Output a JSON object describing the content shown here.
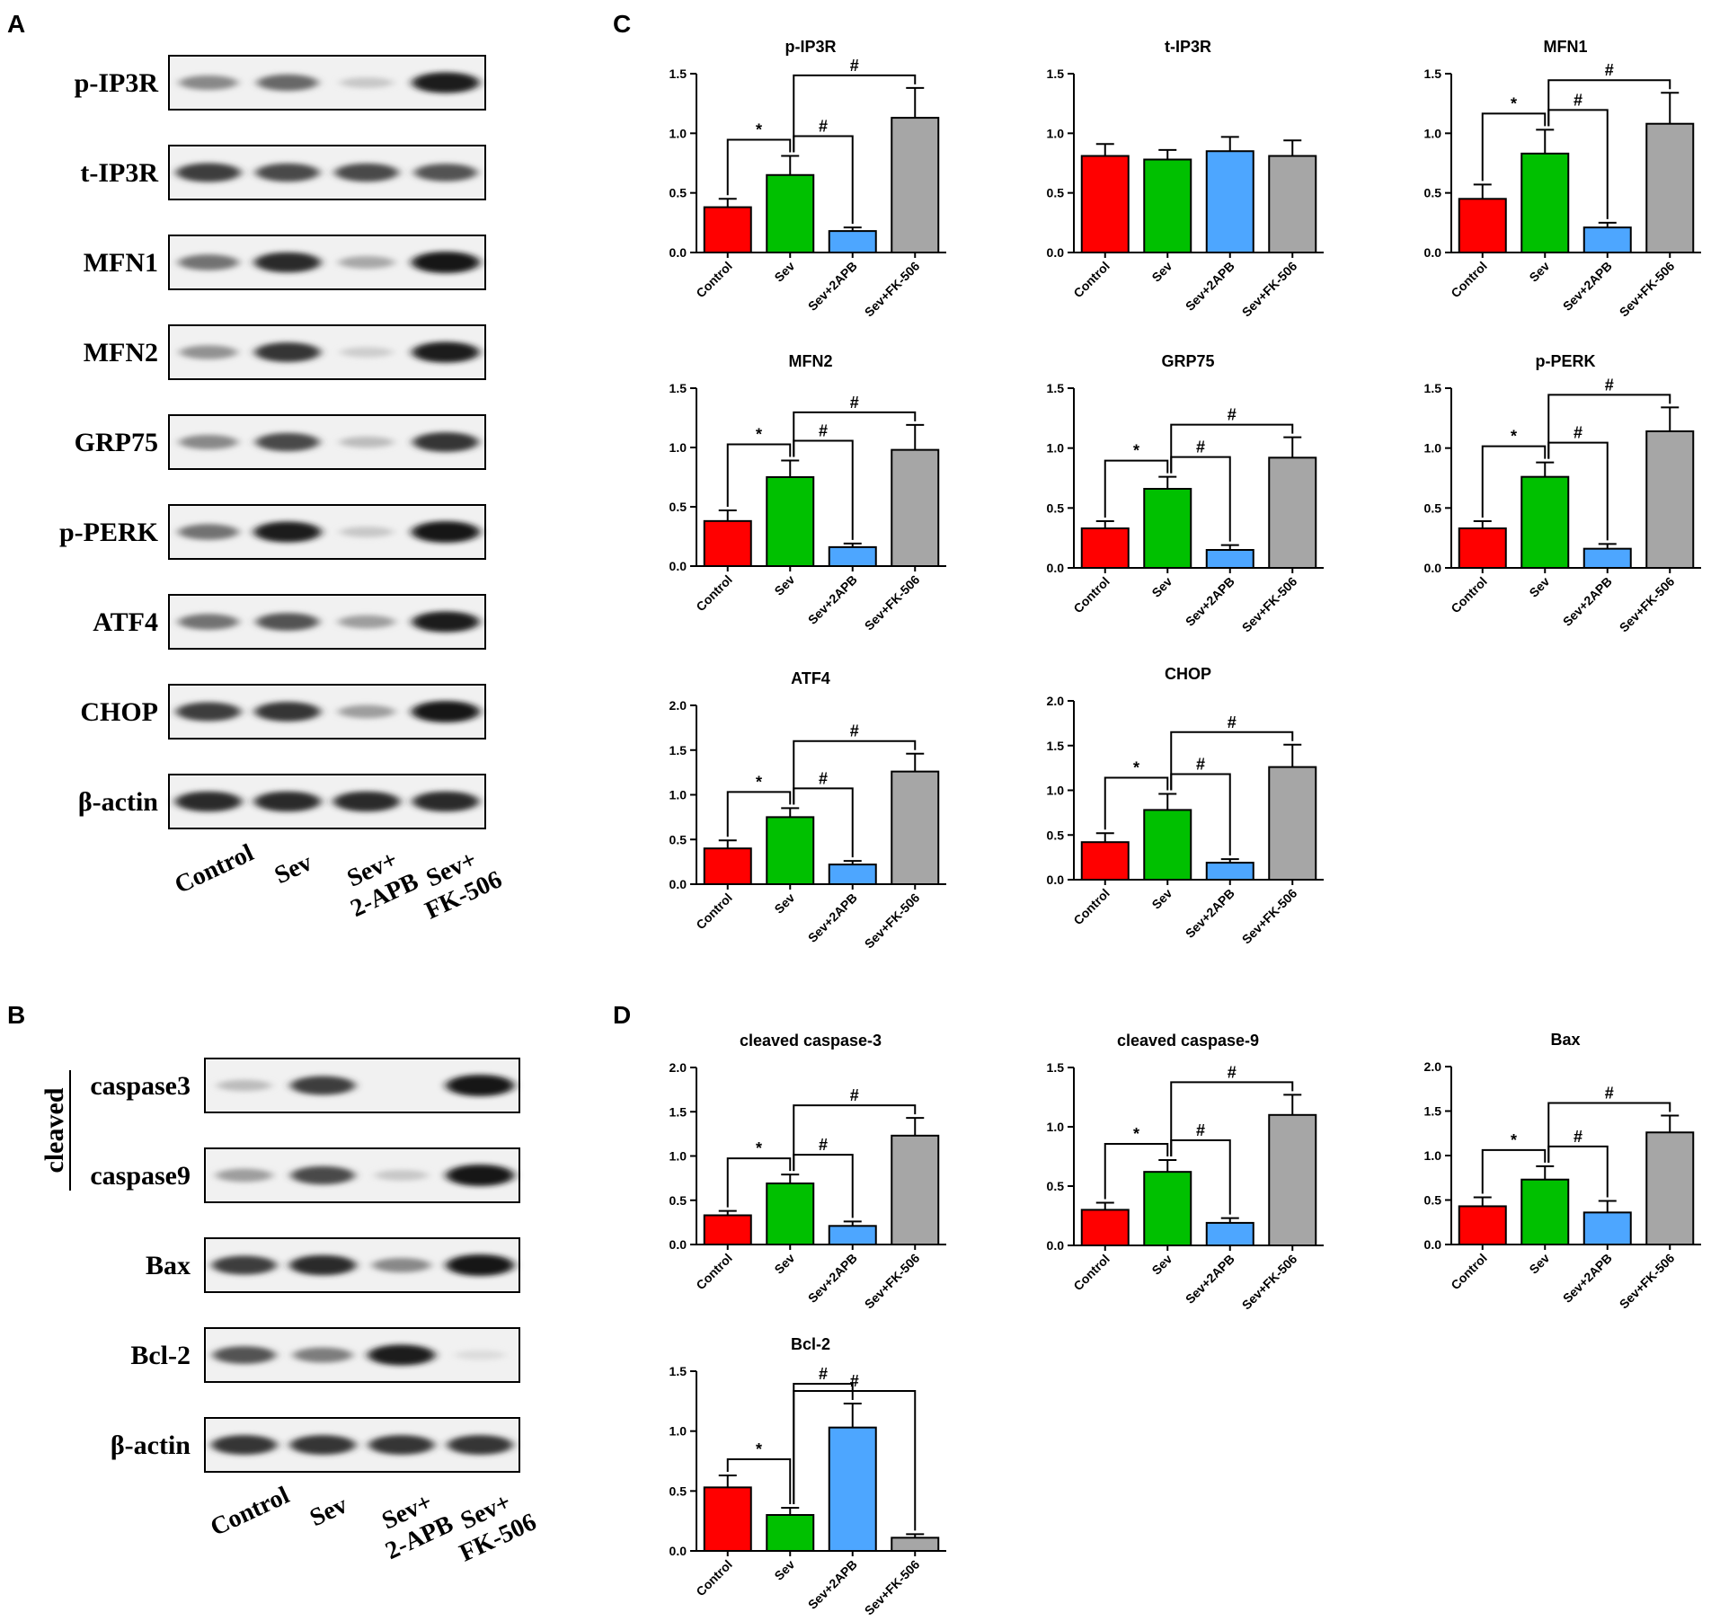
{
  "figure": {
    "panel_letters": [
      "A",
      "B",
      "C",
      "D"
    ],
    "group_colors": [
      "#ff0000",
      "#00c000",
      "#4da6ff",
      "#a6a6a6"
    ],
    "blot_lane_labels": [
      "Control",
      "Sev",
      [
        "Sev+",
        "2-APB"
      ],
      [
        "Sev+",
        "FK-506"
      ]
    ]
  },
  "blots": {
    "A": {
      "rows": [
        {
          "label": "p-IP3R",
          "band_intensity": [
            0.45,
            0.6,
            0.15,
            0.95
          ]
        },
        {
          "label": "t-IP3R",
          "band_intensity": [
            0.8,
            0.75,
            0.75,
            0.7
          ]
        },
        {
          "label": "MFN1",
          "band_intensity": [
            0.55,
            0.9,
            0.3,
            1.0
          ]
        },
        {
          "label": "MFN2",
          "band_intensity": [
            0.4,
            0.85,
            0.12,
            0.95
          ]
        },
        {
          "label": "GRP75",
          "band_intensity": [
            0.45,
            0.75,
            0.2,
            0.85
          ]
        },
        {
          "label": "p-PERK",
          "band_intensity": [
            0.55,
            0.95,
            0.15,
            1.0
          ]
        },
        {
          "label": "ATF4",
          "band_intensity": [
            0.55,
            0.7,
            0.35,
            0.95
          ]
        },
        {
          "label": "CHOP",
          "band_intensity": [
            0.8,
            0.85,
            0.35,
            1.0
          ]
        },
        {
          "label": "β-actin",
          "band_intensity": [
            0.9,
            0.9,
            0.9,
            0.9
          ]
        }
      ]
    },
    "B": {
      "bracket_label": "cleaved",
      "rows": [
        {
          "label": "caspase3",
          "band_intensity": [
            0.2,
            0.8,
            0.0,
            1.0
          ]
        },
        {
          "label": "caspase9",
          "band_intensity": [
            0.35,
            0.75,
            0.15,
            1.0
          ]
        },
        {
          "label": "Bax",
          "band_intensity": [
            0.8,
            0.9,
            0.45,
            1.0
          ]
        },
        {
          "label": "Bcl-2",
          "band_intensity": [
            0.7,
            0.5,
            0.95,
            0.05
          ]
        },
        {
          "label": "β-actin",
          "band_intensity": [
            0.85,
            0.85,
            0.85,
            0.85
          ]
        }
      ]
    }
  },
  "chart_data": [
    {
      "type": "bar",
      "panel": "C",
      "title": "p-IP3R",
      "categories": [
        "Control",
        "Sev",
        "Sev+2APB",
        "Sev+FK-506"
      ],
      "values": [
        0.38,
        0.65,
        0.18,
        1.13
      ],
      "errors": [
        0.07,
        0.16,
        0.03,
        0.25
      ],
      "yticks": [
        "0.0",
        "0.5",
        "1.0",
        "1.5"
      ],
      "ylim": [
        0,
        1.5
      ],
      "sig": [
        {
          "from": 0,
          "to": 1,
          "label": "*"
        },
        {
          "from": 1,
          "to": 2,
          "label": "#"
        },
        {
          "from": 1,
          "to": 3,
          "label": "#"
        }
      ]
    },
    {
      "type": "bar",
      "panel": "C",
      "title": "t-IP3R",
      "categories": [
        "Control",
        "Sev",
        "Sev+2APB",
        "Sev+FK-506"
      ],
      "values": [
        0.81,
        0.78,
        0.85,
        0.81
      ],
      "errors": [
        0.1,
        0.08,
        0.12,
        0.13
      ],
      "yticks": [
        "0.0",
        "0.5",
        "1.0",
        "1.5"
      ],
      "ylim": [
        0,
        1.5
      ],
      "sig": []
    },
    {
      "type": "bar",
      "panel": "C",
      "title": "MFN1",
      "categories": [
        "Control",
        "Sev",
        "Sev+2APB",
        "Sev+FK-506"
      ],
      "values": [
        0.45,
        0.83,
        0.21,
        1.08
      ],
      "errors": [
        0.12,
        0.2,
        0.04,
        0.26
      ],
      "yticks": [
        "0.0",
        "0.5",
        "1.0",
        "1.5"
      ],
      "ylim": [
        0,
        1.5
      ],
      "sig": [
        {
          "from": 0,
          "to": 1,
          "label": "*"
        },
        {
          "from": 1,
          "to": 2,
          "label": "#"
        },
        {
          "from": 1,
          "to": 3,
          "label": "#"
        }
      ]
    },
    {
      "type": "bar",
      "panel": "C",
      "title": "MFN2",
      "categories": [
        "Control",
        "Sev",
        "Sev+2APB",
        "Sev+FK-506"
      ],
      "values": [
        0.38,
        0.75,
        0.16,
        0.98
      ],
      "errors": [
        0.09,
        0.14,
        0.03,
        0.21
      ],
      "yticks": [
        "0.0",
        "0.5",
        "1.0",
        "1.5"
      ],
      "ylim": [
        0,
        1.5
      ],
      "sig": [
        {
          "from": 0,
          "to": 1,
          "label": "*"
        },
        {
          "from": 1,
          "to": 2,
          "label": "#"
        },
        {
          "from": 1,
          "to": 3,
          "label": "#"
        }
      ]
    },
    {
      "type": "bar",
      "panel": "C",
      "title": "GRP75",
      "categories": [
        "Control",
        "Sev",
        "Sev+2APB",
        "Sev+FK-506"
      ],
      "values": [
        0.33,
        0.66,
        0.15,
        0.92
      ],
      "errors": [
        0.06,
        0.1,
        0.04,
        0.17
      ],
      "yticks": [
        "0.0",
        "0.5",
        "1.0",
        "1.5"
      ],
      "ylim": [
        0,
        1.5
      ],
      "sig": [
        {
          "from": 0,
          "to": 1,
          "label": "*"
        },
        {
          "from": 1,
          "to": 2,
          "label": "#"
        },
        {
          "from": 1,
          "to": 3,
          "label": "#"
        }
      ]
    },
    {
      "type": "bar",
      "panel": "C",
      "title": "p-PERK",
      "categories": [
        "Control",
        "Sev",
        "Sev+2APB",
        "Sev+FK-506"
      ],
      "values": [
        0.33,
        0.76,
        0.16,
        1.14
      ],
      "errors": [
        0.06,
        0.12,
        0.04,
        0.2
      ],
      "yticks": [
        "0.0",
        "0.5",
        "1.0",
        "1.5"
      ],
      "ylim": [
        0,
        1.5
      ],
      "sig": [
        {
          "from": 0,
          "to": 1,
          "label": "*"
        },
        {
          "from": 1,
          "to": 2,
          "label": "#"
        },
        {
          "from": 1,
          "to": 3,
          "label": "#"
        }
      ]
    },
    {
      "type": "bar",
      "panel": "C",
      "title": "ATF4",
      "categories": [
        "Control",
        "Sev",
        "Sev+2APB",
        "Sev+FK-506"
      ],
      "values": [
        0.4,
        0.75,
        0.22,
        1.26
      ],
      "errors": [
        0.09,
        0.1,
        0.04,
        0.2
      ],
      "yticks": [
        "0.0",
        "0.5",
        "1.0",
        "1.5",
        "2.0"
      ],
      "ylim": [
        0,
        2.0
      ],
      "sig": [
        {
          "from": 0,
          "to": 1,
          "label": "*"
        },
        {
          "from": 1,
          "to": 2,
          "label": "#"
        },
        {
          "from": 1,
          "to": 3,
          "label": "#"
        }
      ]
    },
    {
      "type": "bar",
      "panel": "C",
      "title": "CHOP",
      "categories": [
        "Control",
        "Sev",
        "Sev+2APB",
        "Sev+FK-506"
      ],
      "values": [
        0.42,
        0.78,
        0.19,
        1.26
      ],
      "errors": [
        0.1,
        0.18,
        0.04,
        0.25
      ],
      "yticks": [
        "0.0",
        "0.5",
        "1.0",
        "1.5",
        "2.0"
      ],
      "ylim": [
        0,
        2.0
      ],
      "sig": [
        {
          "from": 0,
          "to": 1,
          "label": "*"
        },
        {
          "from": 1,
          "to": 2,
          "label": "#"
        },
        {
          "from": 1,
          "to": 3,
          "label": "#"
        }
      ]
    },
    {
      "type": "bar",
      "panel": "D",
      "title": "cleaved caspase-3",
      "categories": [
        "Control",
        "Sev",
        "Sev+2APB",
        "Sev+FK-506"
      ],
      "values": [
        0.33,
        0.69,
        0.21,
        1.23
      ],
      "errors": [
        0.05,
        0.1,
        0.05,
        0.2
      ],
      "yticks": [
        "0.0",
        "0.5",
        "1.0",
        "1.5",
        "2.0"
      ],
      "ylim": [
        0,
        2.0
      ],
      "sig": [
        {
          "from": 0,
          "to": 1,
          "label": "*"
        },
        {
          "from": 1,
          "to": 2,
          "label": "#"
        },
        {
          "from": 1,
          "to": 3,
          "label": "#"
        }
      ]
    },
    {
      "type": "bar",
      "panel": "D",
      "title": "cleaved caspase-9",
      "categories": [
        "Control",
        "Sev",
        "Sev+2APB",
        "Sev+FK-506"
      ],
      "values": [
        0.3,
        0.62,
        0.19,
        1.1
      ],
      "errors": [
        0.06,
        0.1,
        0.04,
        0.17
      ],
      "yticks": [
        "0.0",
        "0.5",
        "1.0",
        "1.5"
      ],
      "ylim": [
        0,
        1.5
      ],
      "sig": [
        {
          "from": 0,
          "to": 1,
          "label": "*"
        },
        {
          "from": 1,
          "to": 2,
          "label": "#"
        },
        {
          "from": 1,
          "to": 3,
          "label": "#"
        }
      ]
    },
    {
      "type": "bar",
      "panel": "D",
      "title": "Bax",
      "categories": [
        "Control",
        "Sev",
        "Sev+2APB",
        "Sev+FK-506"
      ],
      "values": [
        0.43,
        0.73,
        0.36,
        1.26
      ],
      "errors": [
        0.1,
        0.15,
        0.13,
        0.19
      ],
      "yticks": [
        "0.0",
        "0.5",
        "1.0",
        "1.5",
        "2.0"
      ],
      "ylim": [
        0,
        2.0
      ],
      "sig": [
        {
          "from": 0,
          "to": 1,
          "label": "*"
        },
        {
          "from": 1,
          "to": 2,
          "label": "#"
        },
        {
          "from": 1,
          "to": 3,
          "label": "#"
        }
      ]
    },
    {
      "type": "bar",
      "panel": "D",
      "title": "Bcl-2",
      "categories": [
        "Control",
        "Sev",
        "Sev+2APB",
        "Sev+FK-506"
      ],
      "values": [
        0.53,
        0.3,
        1.03,
        0.11
      ],
      "errors": [
        0.1,
        0.06,
        0.2,
        0.03
      ],
      "yticks": [
        "0.0",
        "0.5",
        "1.0",
        "1.5"
      ],
      "ylim": [
        0,
        1.5
      ],
      "sig": [
        {
          "from": 0,
          "to": 1,
          "label": "*"
        },
        {
          "from": 1,
          "to": 2,
          "label": "#"
        },
        {
          "from": 1,
          "to": 3,
          "label": "#"
        }
      ]
    }
  ]
}
